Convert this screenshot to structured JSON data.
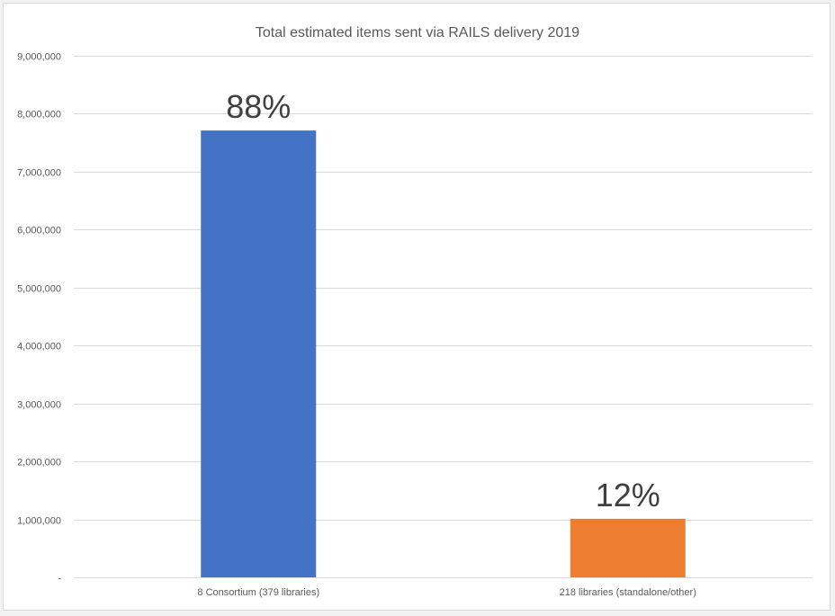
{
  "chart_data": {
    "type": "bar",
    "title": "Total estimated items sent via RAILS delivery 2019",
    "xlabel": "",
    "ylabel": "",
    "ylim": [
      0,
      9000000
    ],
    "grid": true,
    "legend": "none",
    "yticks": [
      0,
      1000000,
      2000000,
      3000000,
      4000000,
      5000000,
      6000000,
      7000000,
      8000000,
      9000000
    ],
    "ytick_labels": [
      "-",
      "1,000,000",
      "2,000,000",
      "3,000,000",
      "4,000,000",
      "5,000,000",
      "6,000,000",
      "7,000,000",
      "8,000,000",
      "9,000,000"
    ],
    "categories": [
      "8 Consortium (379 libraries)",
      "218 libraries (standalone/other)"
    ],
    "values": [
      7710000,
      1010000
    ],
    "data_labels": [
      "88%",
      "12%"
    ],
    "colors": [
      "#4472c4",
      "#ed7d31"
    ]
  }
}
